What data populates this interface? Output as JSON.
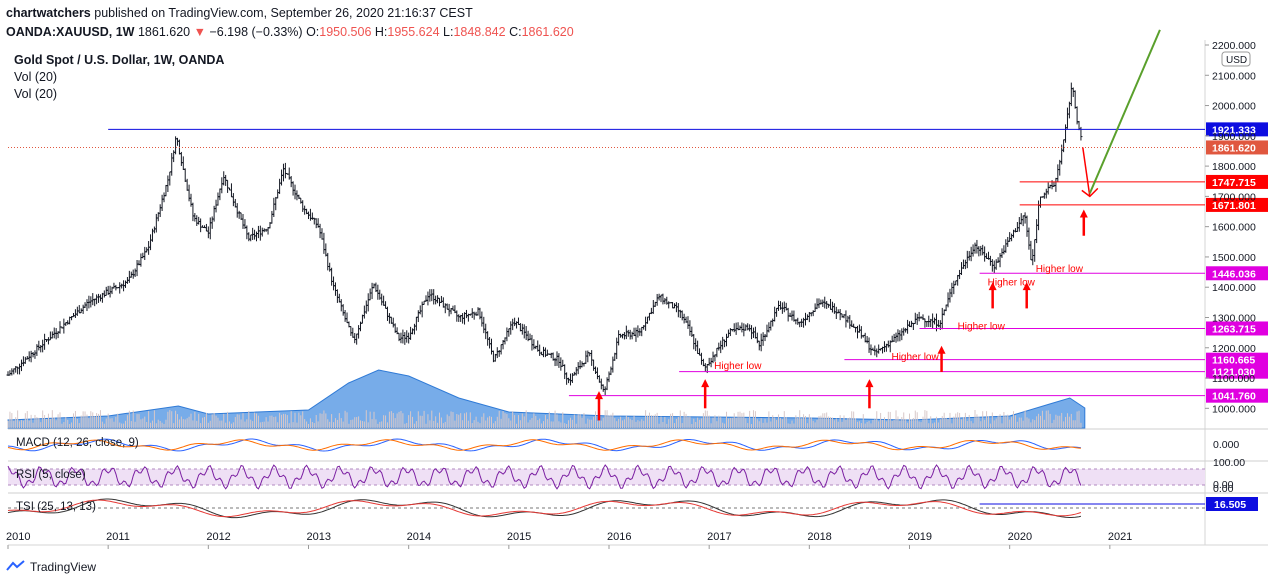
{
  "header": {
    "publisher": "chartwatchers",
    "published_text": "published on TradingView.com, September 26, 2020 21:16:37 CEST",
    "symbol": "OANDA:XAUUSD, 1W",
    "last": "1861.620",
    "change": "−6.198 (−0.33%)",
    "o_label": "O:",
    "o": "1950.506",
    "h_label": "H:",
    "h": "1955.624",
    "l_label": "L:",
    "l": "1848.842",
    "c_label": "C:",
    "c": "1861.620"
  },
  "legend": {
    "title": "Gold Spot / U.S. Dollar, 1W, OANDA",
    "vol1": "Vol (20)",
    "vol2": "Vol (20)"
  },
  "footer": {
    "brand": "TradingView"
  },
  "colors": {
    "bar": "#131722",
    "volume": "#4a90e2",
    "volume_bar": "#d8c8c8",
    "hline_blue": "#0d0de0",
    "hline_red": "#ff0000",
    "hline_magenta": "#e000e0",
    "arrow": "#ff0000",
    "green": "#5aa02c",
    "macd": "#2962ff",
    "signal": "#ff6d00",
    "rsi": "#7b1fa2",
    "tsi": "#333333",
    "tsi_signal": "#e53935"
  },
  "chart_data": {
    "type": "line",
    "price_axis": {
      "currency": "USD",
      "ylim": [
        935,
        2200
      ],
      "ticks": [
        "1000.000",
        "1100.000",
        "1200.000",
        "1300.000",
        "1400.000",
        "1500.000",
        "1600.000",
        "1700.000",
        "1800.000",
        "1900.000",
        "2000.000",
        "2100.000",
        "2200.000"
      ]
    },
    "x_ticks": [
      "2010",
      "2011",
      "2012",
      "2013",
      "2014",
      "2015",
      "2016",
      "2017",
      "2018",
      "2019",
      "2020",
      "2021"
    ],
    "price_series": [
      [
        2010.0,
        1110
      ],
      [
        2010.4,
        1230
      ],
      [
        2010.8,
        1350
      ],
      [
        2011.2,
        1420
      ],
      [
        2011.4,
        1530
      ],
      [
        2011.6,
        1760
      ],
      [
        2011.68,
        1900
      ],
      [
        2011.85,
        1630
      ],
      [
        2012.0,
        1580
      ],
      [
        2012.15,
        1770
      ],
      [
        2012.4,
        1560
      ],
      [
        2012.6,
        1600
      ],
      [
        2012.75,
        1790
      ],
      [
        2012.95,
        1660
      ],
      [
        2013.1,
        1600
      ],
      [
        2013.25,
        1400
      ],
      [
        2013.45,
        1220
      ],
      [
        2013.65,
        1410
      ],
      [
        2013.9,
        1230
      ],
      [
        2014.0,
        1240
      ],
      [
        2014.2,
        1380
      ],
      [
        2014.5,
        1300
      ],
      [
        2014.7,
        1320
      ],
      [
        2014.85,
        1160
      ],
      [
        2015.05,
        1290
      ],
      [
        2015.3,
        1190
      ],
      [
        2015.5,
        1160
      ],
      [
        2015.6,
        1090
      ],
      [
        2015.8,
        1180
      ],
      [
        2015.95,
        1050
      ],
      [
        2016.1,
        1240
      ],
      [
        2016.3,
        1250
      ],
      [
        2016.5,
        1370
      ],
      [
        2016.7,
        1320
      ],
      [
        2016.8,
        1260
      ],
      [
        2016.95,
        1130
      ],
      [
        2017.2,
        1250
      ],
      [
        2017.4,
        1270
      ],
      [
        2017.5,
        1210
      ],
      [
        2017.7,
        1340
      ],
      [
        2017.9,
        1280
      ],
      [
        2018.1,
        1350
      ],
      [
        2018.3,
        1320
      ],
      [
        2018.5,
        1250
      ],
      [
        2018.65,
        1180
      ],
      [
        2018.85,
        1230
      ],
      [
        2019.1,
        1300
      ],
      [
        2019.3,
        1280
      ],
      [
        2019.45,
        1420
      ],
      [
        2019.65,
        1540
      ],
      [
        2019.85,
        1470
      ],
      [
        2020.0,
        1560
      ],
      [
        2020.15,
        1640
      ],
      [
        2020.22,
        1470
      ],
      [
        2020.3,
        1700
      ],
      [
        2020.45,
        1740
      ],
      [
        2020.55,
        1900
      ],
      [
        2020.62,
        2070
      ],
      [
        2020.68,
        1940
      ],
      [
        2020.73,
        1861.62
      ]
    ],
    "horizontal_levels": [
      {
        "value": 1921.333,
        "label": "1921.333",
        "color": "blue",
        "from": 2011.0
      },
      {
        "value": 1861.62,
        "label": "1861.620",
        "color": "current",
        "from": 2010.0
      },
      {
        "value": 1747.715,
        "label": "1747.715",
        "color": "red",
        "from": 2020.1
      },
      {
        "value": 1671.801,
        "label": "1671.801",
        "color": "red",
        "from": 2020.1
      },
      {
        "value": 1446.036,
        "label": "1446.036",
        "color": "magenta",
        "from": 2019.7
      },
      {
        "value": 1263.715,
        "label": "1263.715",
        "color": "magenta",
        "from": 2019.1
      },
      {
        "value": 1160.665,
        "label": "1160.665",
        "color": "magenta",
        "from": 2018.35
      },
      {
        "value": 1121.03,
        "label": "1121.030",
        "color": "magenta",
        "from": 2016.7
      },
      {
        "value": 1041.76,
        "label": "1041.760",
        "color": "magenta",
        "from": 2015.6
      }
    ],
    "annotations": [
      {
        "text": "Higher low",
        "x": 2017.05,
        "y": 1130
      },
      {
        "text": "Higher low",
        "x": 2018.82,
        "y": 1160
      },
      {
        "text": "Higher low",
        "x": 2019.48,
        "y": 1260
      },
      {
        "text": "Higher low",
        "x": 2019.78,
        "y": 1405
      },
      {
        "text": "Higher low",
        "x": 2020.26,
        "y": 1450
      }
    ],
    "up_arrows": [
      {
        "x": 2015.9,
        "y_base": 960,
        "y_tip": 1050
      },
      {
        "x": 2016.96,
        "y_base": 1000,
        "y_tip": 1090
      },
      {
        "x": 2018.6,
        "y_base": 1000,
        "y_tip": 1090
      },
      {
        "x": 2019.32,
        "y_base": 1120,
        "y_tip": 1200
      },
      {
        "x": 2019.83,
        "y_base": 1330,
        "y_tip": 1410
      },
      {
        "x": 2020.17,
        "y_base": 1330,
        "y_tip": 1410
      },
      {
        "x": 2020.74,
        "y_base": 1570,
        "y_tip": 1650
      }
    ],
    "projection": {
      "down": [
        [
          2020.73,
          1861.62
        ],
        [
          2020.8,
          1700
        ]
      ],
      "up": [
        [
          2020.8,
          1710
        ],
        [
          2021.5,
          2250
        ]
      ]
    },
    "volume_profile": [
      [
        2010,
        8
      ],
      [
        2011,
        12
      ],
      [
        2011.7,
        22
      ],
      [
        2012,
        14
      ],
      [
        2013,
        18
      ],
      [
        2013.4,
        45
      ],
      [
        2013.7,
        58
      ],
      [
        2014,
        52
      ],
      [
        2014.5,
        30
      ],
      [
        2015,
        16
      ],
      [
        2016,
        12
      ],
      [
        2017,
        11
      ],
      [
        2018,
        10
      ],
      [
        2019,
        8
      ],
      [
        2020,
        12
      ],
      [
        2020.4,
        24
      ],
      [
        2020.6,
        30
      ],
      [
        2020.75,
        20
      ]
    ],
    "panes": [
      {
        "name": "MACD (12, 26, close, 9)",
        "value_label": "0.000"
      },
      {
        "name": "RSI (5, close)",
        "ticks": [
          "100.00",
          "0.00"
        ]
      },
      {
        "name": "TSI (25, 13, 13)",
        "ticks": [
          "0.00"
        ],
        "value": "16.505"
      }
    ]
  }
}
